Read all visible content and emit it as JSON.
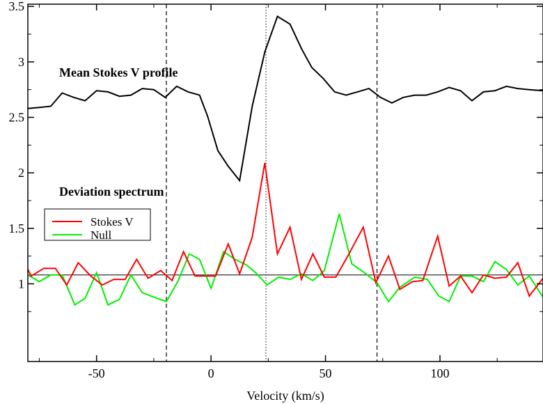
{
  "chart_data": {
    "type": "line",
    "title": "",
    "xlabel": "Velocity (km/s)",
    "ylabel": "",
    "xlim": [
      -80,
      145
    ],
    "ylim": [
      0.3,
      3.52
    ],
    "xticks": [
      -50,
      0,
      50,
      100
    ],
    "yticks": [
      1,
      1.5,
      2,
      2.5,
      3,
      3.5
    ],
    "xtick_labels": [
      "-50",
      "0",
      "50",
      "100"
    ],
    "ytick_labels": [
      "1",
      "1.5",
      "2",
      "2.5",
      "3",
      "3.5"
    ],
    "grid": false,
    "legend_position": "left, middle",
    "annotations": [
      "Mean Stokes V profile",
      "Deviation spectrum"
    ],
    "vlines_dashed": [
      -19.5,
      72.5
    ],
    "vline_dotted": 24,
    "hline": 1.08,
    "colors": {
      "mean": "#000000",
      "stokes_v": "#ff0000",
      "null": "#00ee00",
      "axes": "#000000"
    },
    "series": [
      {
        "id": "mean",
        "x": [
          -80,
          -75,
          -70,
          -65,
          -60,
          -55,
          -50,
          -45,
          -40,
          -35,
          -30,
          -25,
          -20,
          -15,
          -10,
          -5,
          -1.5,
          3,
          7.5,
          12.5,
          18,
          23.5,
          29,
          34.5,
          39.5,
          44,
          49,
          54,
          59,
          64,
          69,
          74,
          79,
          84,
          89,
          94,
          99,
          104,
          109,
          114,
          119,
          124,
          129,
          134,
          139,
          145
        ],
        "values": [
          2.58,
          2.59,
          2.6,
          2.72,
          2.68,
          2.65,
          2.74,
          2.73,
          2.69,
          2.7,
          2.76,
          2.75,
          2.68,
          2.78,
          2.73,
          2.7,
          2.51,
          2.2,
          2.06,
          1.93,
          2.6,
          3.09,
          3.41,
          3.34,
          3.12,
          2.95,
          2.85,
          2.73,
          2.7,
          2.73,
          2.76,
          2.68,
          2.63,
          2.68,
          2.7,
          2.7,
          2.73,
          2.77,
          2.74,
          2.65,
          2.73,
          2.74,
          2.78,
          2.76,
          2.75,
          2.74
        ]
      },
      {
        "id": "stokes_v",
        "name": "Stokes V",
        "x": [
          -80,
          -78.5,
          -73,
          -68,
          -63,
          -58,
          -52.5,
          -47.5,
          -42.5,
          -37.5,
          -32.5,
          -27.5,
          -22,
          -17,
          -12,
          -7,
          -2,
          2,
          7.5,
          12.5,
          18,
          23.5,
          29,
          34.5,
          39.5,
          44.5,
          49.5,
          54.5,
          60,
          66.5,
          72,
          77.5,
          82.5,
          88,
          92.5,
          99,
          104,
          109,
          114,
          119,
          124,
          129,
          134,
          139,
          145
        ],
        "values": [
          1.13,
          1.07,
          1.14,
          1.14,
          0.99,
          1.19,
          1.07,
          0.99,
          1.04,
          1.04,
          1.22,
          1.05,
          1.12,
          1.03,
          1.29,
          1.07,
          1.07,
          1.07,
          1.36,
          1.09,
          1.42,
          2.09,
          1.27,
          1.51,
          1.04,
          1.27,
          1.06,
          1.06,
          1.26,
          1.51,
          1.01,
          1.25,
          0.95,
          1.02,
          1.03,
          1.43,
          0.98,
          1.07,
          0.92,
          1.08,
          1.05,
          1.06,
          1.19,
          0.89,
          1.05
        ]
      },
      {
        "id": "null",
        "name": "Null",
        "x": [
          -80,
          -75,
          -70,
          -65,
          -59.5,
          -55,
          -50,
          -45,
          -40,
          -35,
          -30,
          -25,
          -19.5,
          -14.5,
          -9.5,
          -5,
          0,
          5.5,
          10.5,
          15.5,
          19.5,
          24.5,
          29.5,
          34.5,
          39.5,
          44.5,
          49.5,
          56,
          61.5,
          67,
          72.5,
          77.5,
          82.5,
          89,
          94.5,
          99.5,
          104,
          109,
          114,
          119,
          124,
          129,
          134,
          139,
          145
        ],
        "values": [
          1.08,
          1.02,
          1.08,
          1.08,
          0.81,
          0.87,
          1.1,
          0.81,
          0.86,
          1.08,
          0.92,
          0.88,
          0.84,
          1.02,
          1.27,
          1.22,
          0.96,
          1.29,
          1.22,
          1.17,
          1.1,
          0.99,
          1.06,
          1.04,
          1.09,
          1.03,
          1.12,
          1.63,
          1.18,
          1.1,
          1.01,
          0.84,
          0.97,
          1.06,
          1.04,
          0.89,
          0.84,
          1.07,
          1.07,
          1.02,
          1.2,
          1.13,
          0.99,
          1.07,
          0.88
        ]
      }
    ]
  },
  "legend": {
    "items": [
      "Stokes V",
      "Null"
    ]
  }
}
